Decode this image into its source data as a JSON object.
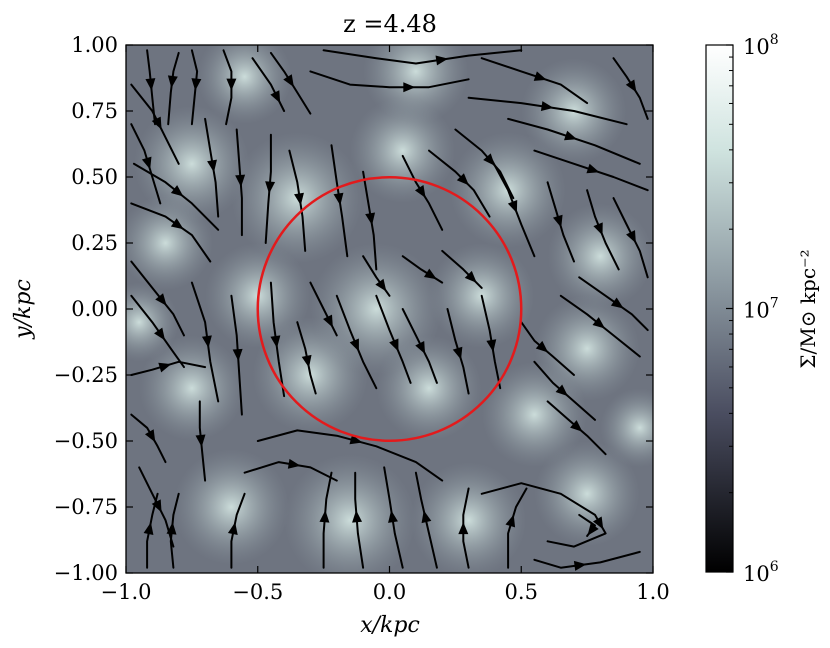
{
  "chart_data": {
    "type": "streamplot",
    "title": "z =4.48",
    "xlabel": "x/kpc",
    "ylabel": "y/kpc",
    "xlim": [
      -1.0,
      1.0
    ],
    "ylim": [
      -1.0,
      1.0
    ],
    "xticks": [
      "−1.0",
      "−0.5",
      "0.0",
      "0.5",
      "1.0"
    ],
    "yticks": [
      "−1.00",
      "−0.75",
      "−0.50",
      "−0.25",
      "0.00",
      "0.25",
      "0.50",
      "0.75",
      "1.00"
    ],
    "colorbar": {
      "label": "Σ/M⊙ kpc⁻²",
      "scale": "log",
      "range": [
        1000000,
        100000000
      ],
      "ticks": [
        {
          "value": 100000000,
          "label_base": "10",
          "label_exp": "8"
        },
        {
          "value": 10000000,
          "label_base": "10",
          "label_exp": "7"
        },
        {
          "value": 1000000,
          "label_base": "10",
          "label_exp": "6"
        }
      ],
      "colors": [
        "#000000",
        "#4a4d60",
        "#8d9aa2",
        "#cfe3df",
        "#ffffff"
      ]
    },
    "circle": {
      "center": [
        0.0,
        0.0
      ],
      "radius": 0.5,
      "color": "#e31a1c"
    },
    "streamlines": [
      [
        [
          -0.92,
          0.98
        ],
        [
          -0.91,
          0.9
        ],
        [
          -0.9,
          0.8
        ],
        [
          -0.89,
          0.7
        ]
      ],
      [
        [
          -0.8,
          0.97
        ],
        [
          -0.82,
          0.9
        ],
        [
          -0.83,
          0.82
        ],
        [
          -0.84,
          0.7
        ]
      ],
      [
        [
          -0.75,
          0.98
        ],
        [
          -0.73,
          0.9
        ],
        [
          -0.74,
          0.8
        ],
        [
          -0.75,
          0.7
        ]
      ],
      [
        [
          -0.63,
          0.98
        ],
        [
          -0.6,
          0.9
        ],
        [
          -0.6,
          0.8
        ],
        [
          -0.62,
          0.7
        ]
      ],
      [
        [
          -0.45,
          0.97
        ],
        [
          -0.4,
          0.9
        ],
        [
          -0.35,
          0.82
        ],
        [
          -0.3,
          0.74
        ]
      ],
      [
        [
          -0.52,
          0.95
        ],
        [
          -0.45,
          0.85
        ],
        [
          -0.4,
          0.75
        ]
      ],
      [
        [
          -0.25,
          0.98
        ],
        [
          -0.05,
          0.95
        ],
        [
          0.1,
          0.93
        ],
        [
          0.3,
          0.96
        ],
        [
          0.5,
          0.98
        ]
      ],
      [
        [
          -0.3,
          0.9
        ],
        [
          -0.15,
          0.85
        ],
        [
          0.0,
          0.84
        ],
        [
          0.15,
          0.84
        ],
        [
          0.3,
          0.87
        ]
      ],
      [
        [
          0.35,
          0.95
        ],
        [
          0.5,
          0.9
        ],
        [
          0.65,
          0.85
        ],
        [
          0.75,
          0.78
        ]
      ],
      [
        [
          0.3,
          0.8
        ],
        [
          0.5,
          0.78
        ],
        [
          0.7,
          0.75
        ],
        [
          0.9,
          0.7
        ]
      ],
      [
        [
          0.85,
          0.95
        ],
        [
          0.9,
          0.88
        ],
        [
          0.95,
          0.8
        ],
        [
          0.98,
          0.72
        ]
      ],
      [
        [
          0.45,
          0.72
        ],
        [
          0.6,
          0.68
        ],
        [
          0.78,
          0.62
        ],
        [
          0.95,
          0.55
        ]
      ],
      [
        [
          0.55,
          0.6
        ],
        [
          0.7,
          0.55
        ],
        [
          0.85,
          0.5
        ],
        [
          0.98,
          0.45
        ]
      ],
      [
        [
          -0.98,
          0.85
        ],
        [
          -0.9,
          0.75
        ],
        [
          -0.85,
          0.65
        ],
        [
          -0.8,
          0.55
        ]
      ],
      [
        [
          -0.98,
          0.7
        ],
        [
          -0.93,
          0.6
        ],
        [
          -0.9,
          0.5
        ],
        [
          -0.87,
          0.4
        ]
      ],
      [
        [
          -0.97,
          0.55
        ],
        [
          -0.85,
          0.48
        ],
        [
          -0.75,
          0.4
        ],
        [
          -0.65,
          0.3
        ]
      ],
      [
        [
          -0.98,
          0.4
        ],
        [
          -0.85,
          0.35
        ],
        [
          -0.75,
          0.28
        ],
        [
          -0.68,
          0.18
        ]
      ],
      [
        [
          -0.7,
          0.72
        ],
        [
          -0.68,
          0.6
        ],
        [
          -0.66,
          0.48
        ],
        [
          -0.65,
          0.35
        ]
      ],
      [
        [
          -0.58,
          0.68
        ],
        [
          -0.57,
          0.55
        ],
        [
          -0.56,
          0.42
        ],
        [
          -0.56,
          0.28
        ]
      ],
      [
        [
          -0.45,
          0.66
        ],
        [
          -0.45,
          0.52
        ],
        [
          -0.46,
          0.4
        ],
        [
          -0.47,
          0.25
        ]
      ],
      [
        [
          -0.38,
          0.6
        ],
        [
          -0.35,
          0.48
        ],
        [
          -0.33,
          0.35
        ],
        [
          -0.32,
          0.22
        ]
      ],
      [
        [
          -0.22,
          0.62
        ],
        [
          -0.2,
          0.48
        ],
        [
          -0.18,
          0.35
        ],
        [
          -0.16,
          0.2
        ]
      ],
      [
        [
          -0.1,
          0.52
        ],
        [
          -0.08,
          0.4
        ],
        [
          -0.06,
          0.28
        ],
        [
          -0.05,
          0.15
        ]
      ],
      [
        [
          0.05,
          0.58
        ],
        [
          0.1,
          0.48
        ],
        [
          0.15,
          0.4
        ],
        [
          0.2,
          0.3
        ]
      ],
      [
        [
          0.15,
          0.6
        ],
        [
          0.25,
          0.52
        ],
        [
          0.32,
          0.45
        ],
        [
          0.38,
          0.35
        ]
      ],
      [
        [
          0.25,
          0.68
        ],
        [
          0.35,
          0.6
        ],
        [
          0.42,
          0.52
        ],
        [
          0.47,
          0.42
        ]
      ],
      [
        [
          0.38,
          0.58
        ],
        [
          0.45,
          0.45
        ],
        [
          0.5,
          0.32
        ],
        [
          0.55,
          0.2
        ]
      ],
      [
        [
          0.6,
          0.48
        ],
        [
          0.63,
          0.38
        ],
        [
          0.66,
          0.28
        ],
        [
          0.7,
          0.18
        ]
      ],
      [
        [
          0.75,
          0.45
        ],
        [
          0.78,
          0.35
        ],
        [
          0.82,
          0.25
        ],
        [
          0.87,
          0.15
        ]
      ],
      [
        [
          0.85,
          0.42
        ],
        [
          0.9,
          0.32
        ],
        [
          0.95,
          0.22
        ],
        [
          0.98,
          0.12
        ]
      ],
      [
        [
          -0.98,
          0.18
        ],
        [
          -0.9,
          0.08
        ],
        [
          -0.82,
          -0.02
        ],
        [
          -0.78,
          -0.1
        ]
      ],
      [
        [
          -0.98,
          0.05
        ],
        [
          -0.9,
          -0.05
        ],
        [
          -0.83,
          -0.15
        ],
        [
          -0.78,
          -0.22
        ]
      ],
      [
        [
          -0.75,
          0.1
        ],
        [
          -0.7,
          -0.05
        ],
        [
          -0.68,
          -0.2
        ],
        [
          -0.65,
          -0.35
        ]
      ],
      [
        [
          -0.6,
          0.05
        ],
        [
          -0.58,
          -0.1
        ],
        [
          -0.57,
          -0.25
        ],
        [
          -0.56,
          -0.4
        ]
      ],
      [
        [
          -0.45,
          0.1
        ],
        [
          -0.44,
          -0.05
        ],
        [
          -0.42,
          -0.2
        ],
        [
          -0.4,
          -0.33
        ]
      ],
      [
        [
          -0.3,
          0.1
        ],
        [
          -0.25,
          0.0
        ],
        [
          -0.2,
          -0.1
        ]
      ],
      [
        [
          -0.1,
          0.2
        ],
        [
          -0.05,
          0.12
        ],
        [
          0.0,
          0.05
        ]
      ],
      [
        [
          0.05,
          0.2
        ],
        [
          0.12,
          0.15
        ],
        [
          0.2,
          0.1
        ]
      ],
      [
        [
          0.2,
          0.22
        ],
        [
          0.28,
          0.15
        ],
        [
          0.35,
          0.08
        ]
      ],
      [
        [
          -0.98,
          -0.25
        ],
        [
          -0.9,
          -0.23
        ],
        [
          -0.8,
          -0.2
        ],
        [
          -0.7,
          -0.22
        ]
      ],
      [
        [
          -0.98,
          -0.4
        ],
        [
          -0.92,
          -0.45
        ],
        [
          -0.88,
          -0.52
        ],
        [
          -0.85,
          -0.58
        ]
      ],
      [
        [
          -0.72,
          -0.35
        ],
        [
          -0.72,
          -0.45
        ],
        [
          -0.71,
          -0.55
        ],
        [
          -0.7,
          -0.65
        ]
      ],
      [
        [
          -0.35,
          -0.05
        ],
        [
          -0.32,
          -0.15
        ],
        [
          -0.3,
          -0.25
        ],
        [
          -0.28,
          -0.32
        ]
      ],
      [
        [
          -0.2,
          0.05
        ],
        [
          -0.15,
          -0.08
        ],
        [
          -0.1,
          -0.2
        ],
        [
          -0.05,
          -0.3
        ]
      ],
      [
        [
          -0.05,
          0.05
        ],
        [
          0.0,
          -0.08
        ],
        [
          0.05,
          -0.2
        ],
        [
          0.08,
          -0.28
        ]
      ],
      [
        [
          0.05,
          0.0
        ],
        [
          0.1,
          -0.1
        ],
        [
          0.15,
          -0.2
        ],
        [
          0.18,
          -0.28
        ]
      ],
      [
        [
          0.22,
          0.0
        ],
        [
          0.25,
          -0.12
        ],
        [
          0.28,
          -0.22
        ],
        [
          0.3,
          -0.32
        ]
      ],
      [
        [
          0.35,
          0.05
        ],
        [
          0.38,
          -0.08
        ],
        [
          0.4,
          -0.2
        ],
        [
          0.42,
          -0.3
        ]
      ],
      [
        [
          0.5,
          -0.05
        ],
        [
          0.55,
          -0.12
        ],
        [
          0.62,
          -0.18
        ],
        [
          0.7,
          -0.25
        ]
      ],
      [
        [
          0.55,
          -0.2
        ],
        [
          0.62,
          -0.28
        ],
        [
          0.7,
          -0.35
        ],
        [
          0.78,
          -0.42
        ]
      ],
      [
        [
          0.6,
          -0.35
        ],
        [
          0.68,
          -0.42
        ],
        [
          0.75,
          -0.48
        ],
        [
          0.82,
          -0.55
        ]
      ],
      [
        [
          0.65,
          0.05
        ],
        [
          0.75,
          -0.02
        ],
        [
          0.85,
          -0.1
        ],
        [
          0.95,
          -0.18
        ]
      ],
      [
        [
          0.72,
          0.12
        ],
        [
          0.82,
          0.05
        ],
        [
          0.92,
          -0.02
        ],
        [
          0.98,
          -0.08
        ]
      ],
      [
        [
          -0.5,
          -0.5
        ],
        [
          -0.35,
          -0.46
        ],
        [
          -0.2,
          -0.48
        ],
        [
          -0.05,
          -0.52
        ],
        [
          0.1,
          -0.58
        ],
        [
          0.2,
          -0.65
        ]
      ],
      [
        [
          -0.55,
          -0.62
        ],
        [
          -0.42,
          -0.58
        ],
        [
          -0.3,
          -0.6
        ],
        [
          -0.2,
          -0.65
        ]
      ],
      [
        [
          -0.25,
          -0.98
        ],
        [
          -0.25,
          -0.85
        ],
        [
          -0.24,
          -0.72
        ],
        [
          -0.22,
          -0.62
        ]
      ],
      [
        [
          -0.1,
          -0.98
        ],
        [
          -0.12,
          -0.85
        ],
        [
          -0.13,
          -0.72
        ],
        [
          -0.13,
          -0.62
        ]
      ],
      [
        [
          0.05,
          -0.98
        ],
        [
          0.02,
          -0.85
        ],
        [
          0.0,
          -0.72
        ],
        [
          -0.02,
          -0.6
        ]
      ],
      [
        [
          0.18,
          -0.98
        ],
        [
          0.15,
          -0.85
        ],
        [
          0.12,
          -0.72
        ],
        [
          0.1,
          -0.62
        ]
      ],
      [
        [
          0.3,
          -0.98
        ],
        [
          0.28,
          -0.88
        ],
        [
          0.28,
          -0.78
        ],
        [
          0.3,
          -0.68
        ]
      ],
      [
        [
          0.45,
          -0.98
        ],
        [
          0.45,
          -0.85
        ],
        [
          0.48,
          -0.75
        ],
        [
          0.52,
          -0.68
        ]
      ],
      [
        [
          0.35,
          -0.7
        ],
        [
          0.5,
          -0.66
        ],
        [
          0.65,
          -0.7
        ],
        [
          0.78,
          -0.78
        ],
        [
          0.82,
          -0.85
        ],
        [
          0.7,
          -0.9
        ],
        [
          0.6,
          -0.88
        ]
      ],
      [
        [
          0.55,
          -0.95
        ],
        [
          0.65,
          -0.98
        ],
        [
          0.8,
          -0.96
        ],
        [
          0.95,
          -0.92
        ]
      ],
      [
        [
          0.72,
          -0.78
        ],
        [
          0.78,
          -0.82
        ],
        [
          0.75,
          -0.86
        ]
      ],
      [
        [
          -0.92,
          -0.98
        ],
        [
          -0.92,
          -0.88
        ],
        [
          -0.9,
          -0.78
        ],
        [
          -0.88,
          -0.7
        ]
      ],
      [
        [
          -0.82,
          -0.98
        ],
        [
          -0.83,
          -0.88
        ],
        [
          -0.82,
          -0.78
        ],
        [
          -0.8,
          -0.7
        ]
      ],
      [
        [
          -0.6,
          -0.98
        ],
        [
          -0.6,
          -0.88
        ],
        [
          -0.58,
          -0.78
        ],
        [
          -0.55,
          -0.7
        ]
      ],
      [
        [
          -0.95,
          -0.6
        ],
        [
          -0.9,
          -0.7
        ],
        [
          -0.85,
          -0.8
        ],
        [
          -0.82,
          -0.9
        ]
      ]
    ]
  }
}
